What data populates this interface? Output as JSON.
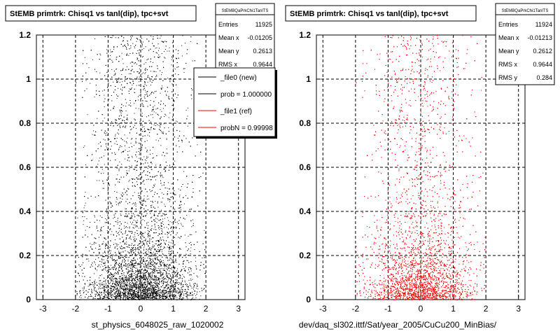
{
  "colors": {
    "file0": "#000000",
    "file1": "#ff0000",
    "frame": "#000000",
    "grid": "#000000",
    "background": "#ffffff"
  },
  "chart_data": [
    {
      "type": "scatter",
      "title": "StEMB primtrk: Chisq1 vs tanl(dip), tpc+svt",
      "xlabel": "st_physics_6048025_raw_1020002",
      "ylabel": "",
      "xlim": [
        -3.2,
        3.2
      ],
      "ylim": [
        0,
        1.2
      ],
      "xticks": [
        "-3",
        "-2",
        "-1",
        "0",
        "1",
        "2",
        "3"
      ],
      "yticks": [
        "0",
        "0.2",
        "0.4",
        "0.6",
        "0.8",
        "1",
        "1.2"
      ],
      "grid": true,
      "marker_color": "#000000",
      "stats": {
        "name": "StEMBQaPrkChi1TanlTS",
        "rows": [
          {
            "label": "Entries",
            "value": "11925"
          },
          {
            "label": "Mean x",
            "value": "-0.01205"
          },
          {
            "label": "Mean y",
            "value": "0.2613"
          },
          {
            "label": "RMS x",
            "value": "0.9644"
          }
        ]
      },
      "legend": {
        "placement": "top-right",
        "entries": [
          {
            "label": "_file0 (new)",
            "color": "#000000"
          },
          {
            "label": "prob = 1.000000",
            "color": "#000000"
          },
          {
            "label": "_file1 (ref)",
            "color": "#ff0000"
          },
          {
            "label": "probN = 0.99998",
            "color": "#ff0000"
          }
        ]
      },
      "distribution": {
        "x_mean": -0.01205,
        "x_rms": 0.9644,
        "x_range": [
          -2,
          2
        ],
        "y_mean": 0.2613,
        "y_range": [
          0,
          1.2
        ],
        "entries": 11925
      }
    },
    {
      "type": "scatter",
      "title": "StEMB primtrk: Chisq1 vs tanl(dip), tpc+svt",
      "xlabel": "dev/daq_sl302.ittf/Sat/year_2005/CuCu200_MinBias/",
      "ylabel": "",
      "xlim": [
        -3.2,
        3.2
      ],
      "ylim": [
        0,
        1.2
      ],
      "xticks": [
        "-3",
        "-2",
        "-1",
        "0",
        "1",
        "2",
        "3"
      ],
      "yticks": [
        "0",
        "0.2",
        "0.4",
        "0.6",
        "0.8",
        "1",
        "1.2"
      ],
      "grid": true,
      "marker_color": "#ff0000",
      "stats": {
        "name": "StEMBQaPrkChi1TanlTS",
        "rows": [
          {
            "label": "Entries",
            "value": "11924"
          },
          {
            "label": "Mean x",
            "value": "-0.01213"
          },
          {
            "label": "Mean y",
            "value": "0.2612"
          },
          {
            "label": "RMS x",
            "value": "0.9644"
          },
          {
            "label": "RMS y",
            "value": "0.284"
          }
        ]
      },
      "distribution": {
        "x_mean": -0.01213,
        "x_rms": 0.9644,
        "x_range": [
          -2,
          2
        ],
        "y_mean": 0.2612,
        "y_range": [
          0,
          1.2
        ],
        "entries": 11924
      }
    }
  ]
}
